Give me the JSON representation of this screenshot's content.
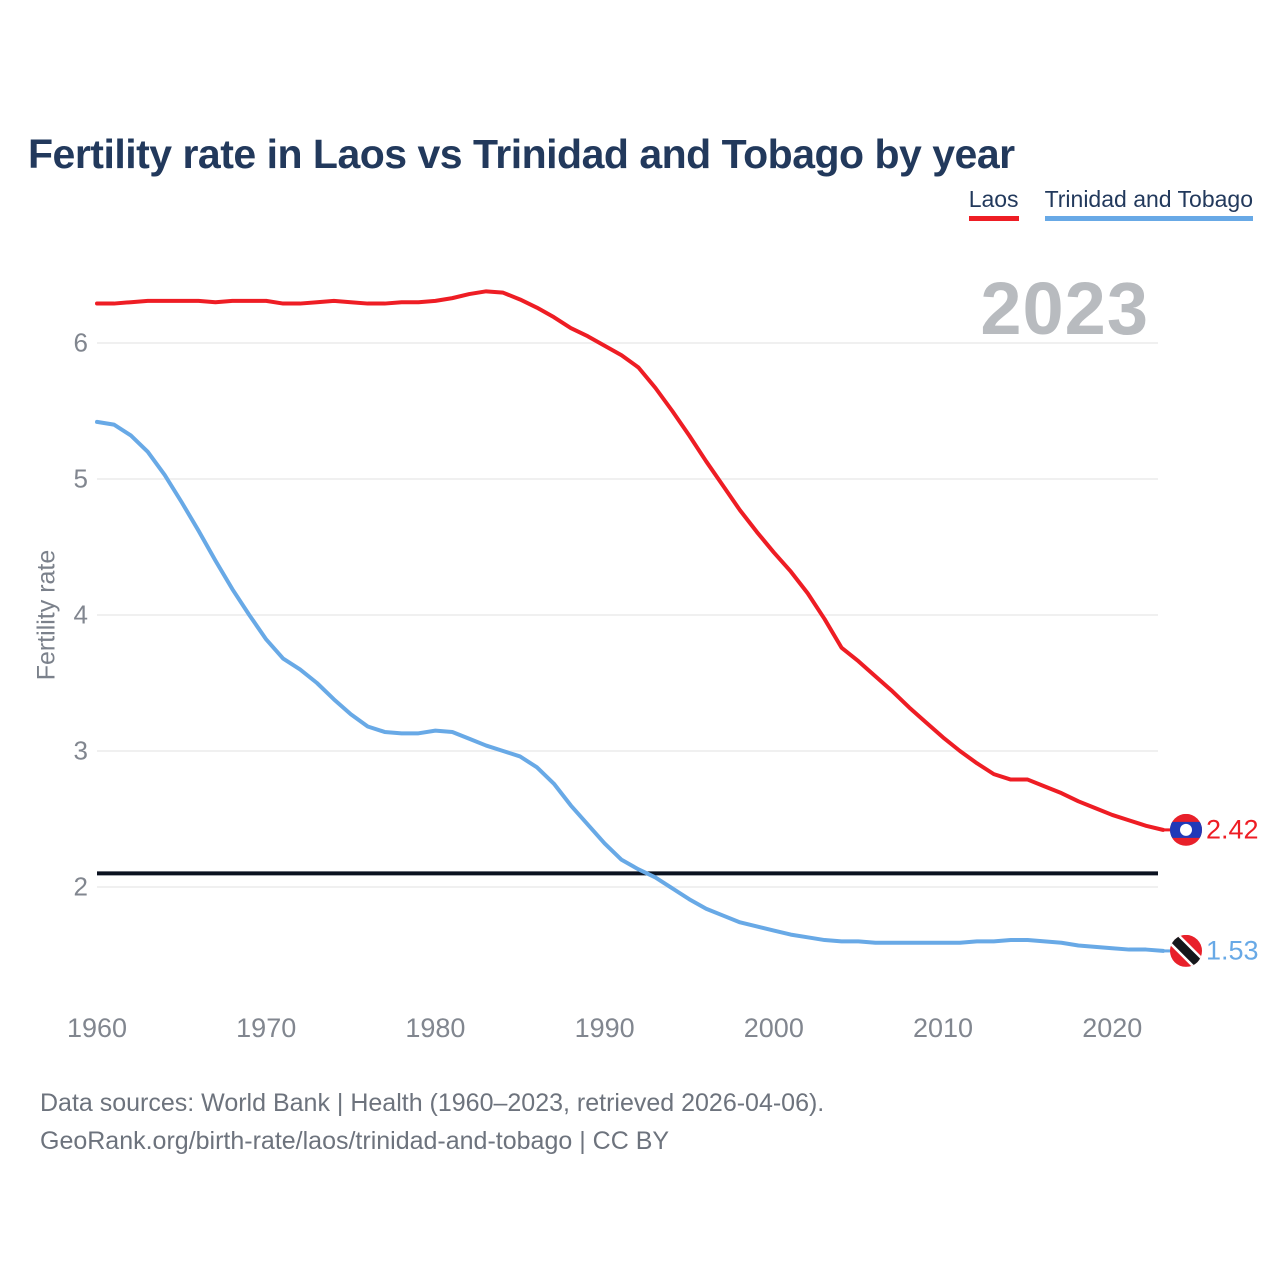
{
  "title": "Fertility rate in Laos vs Trinidad and Tobago by year",
  "watermark_year": "2023",
  "legend": [
    {
      "label": "Laos",
      "color": "#ee1d24"
    },
    {
      "label": "Trinidad and Tobago",
      "color": "#68a9e6"
    }
  ],
  "y_axis": {
    "label": "Fertility rate",
    "ticks": [
      2,
      3,
      4,
      5,
      6
    ]
  },
  "x_axis": {
    "ticks": [
      1960,
      1970,
      1980,
      1990,
      2000,
      2010,
      2020
    ]
  },
  "reference_line": {
    "value": 2.1,
    "color": "#0b1220"
  },
  "end_labels": [
    {
      "series": "Laos",
      "value": "2.42",
      "color": "#ee1d24",
      "icon": "laos-flag-icon",
      "flag_colors": [
        "#e8202a",
        "#2039b8",
        "#ffffff"
      ]
    },
    {
      "series": "Trinidad and Tobago",
      "value": "1.53",
      "color": "#68a9e6",
      "icon": "trinidad-and-tobago-flag-icon",
      "flag_colors": [
        "#e8202a",
        "#ffffff",
        "#15161a"
      ]
    }
  ],
  "footer": {
    "line1": "Data sources: World Bank | Health (1960–2023, retrieved 2026-04-06).",
    "line2": "GeoRank.org/birth-rate/laos/trinidad-and-tobago | CC BY"
  },
  "chart_data": {
    "type": "line",
    "title": "Fertility rate in Laos vs Trinidad and Tobago by year",
    "xlabel": "",
    "ylabel": "Fertility rate",
    "xlim": [
      1960,
      2023
    ],
    "ylim": [
      1.35,
      6.55
    ],
    "grid": "horizontal",
    "legend_position": "top-right",
    "reference_line_y": 2.1,
    "x": [
      1960,
      1961,
      1962,
      1963,
      1964,
      1965,
      1966,
      1967,
      1968,
      1969,
      1970,
      1971,
      1972,
      1973,
      1974,
      1975,
      1976,
      1977,
      1978,
      1979,
      1980,
      1981,
      1982,
      1983,
      1984,
      1985,
      1986,
      1987,
      1988,
      1989,
      1990,
      1991,
      1992,
      1993,
      1994,
      1995,
      1996,
      1997,
      1998,
      1999,
      2000,
      2001,
      2002,
      2003,
      2004,
      2005,
      2006,
      2007,
      2008,
      2009,
      2010,
      2011,
      2012,
      2013,
      2014,
      2015,
      2016,
      2017,
      2018,
      2019,
      2020,
      2021,
      2022,
      2023
    ],
    "series": [
      {
        "name": "Laos",
        "color": "#ee1d24",
        "values": [
          6.29,
          6.29,
          6.3,
          6.31,
          6.31,
          6.31,
          6.31,
          6.3,
          6.31,
          6.31,
          6.31,
          6.29,
          6.29,
          6.3,
          6.31,
          6.3,
          6.29,
          6.29,
          6.3,
          6.3,
          6.31,
          6.33,
          6.36,
          6.38,
          6.37,
          6.32,
          6.26,
          6.19,
          6.11,
          6.05,
          5.98,
          5.91,
          5.82,
          5.67,
          5.5,
          5.32,
          5.13,
          4.95,
          4.77,
          4.61,
          4.46,
          4.32,
          4.16,
          3.97,
          3.76,
          3.66,
          3.55,
          3.44,
          3.32,
          3.21,
          3.1,
          3.0,
          2.91,
          2.83,
          2.79,
          2.79,
          2.74,
          2.69,
          2.63,
          2.58,
          2.53,
          2.49,
          2.45,
          2.42
        ]
      },
      {
        "name": "Trinidad and Tobago",
        "color": "#68a9e6",
        "values": [
          5.42,
          5.4,
          5.32,
          5.2,
          5.03,
          4.83,
          4.62,
          4.4,
          4.19,
          4.0,
          3.82,
          3.68,
          3.6,
          3.5,
          3.38,
          3.27,
          3.18,
          3.14,
          3.13,
          3.13,
          3.15,
          3.14,
          3.09,
          3.04,
          3.0,
          2.96,
          2.88,
          2.76,
          2.6,
          2.46,
          2.32,
          2.2,
          2.13,
          2.07,
          1.99,
          1.91,
          1.84,
          1.79,
          1.74,
          1.71,
          1.68,
          1.65,
          1.63,
          1.61,
          1.6,
          1.6,
          1.59,
          1.59,
          1.59,
          1.59,
          1.59,
          1.59,
          1.6,
          1.6,
          1.61,
          1.61,
          1.6,
          1.59,
          1.57,
          1.56,
          1.55,
          1.54,
          1.54,
          1.53
        ]
      }
    ]
  }
}
